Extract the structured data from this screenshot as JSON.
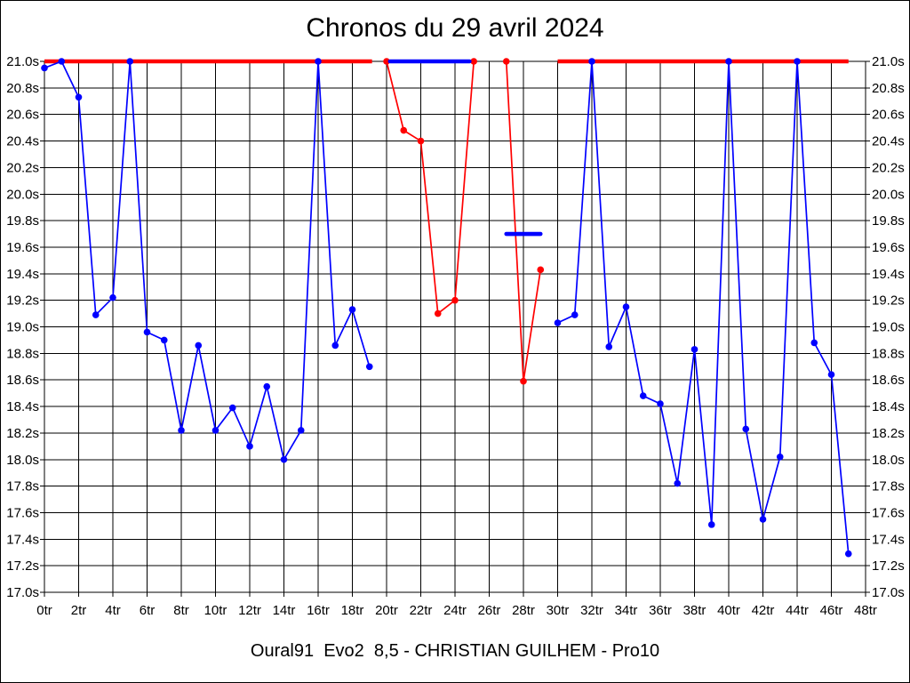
{
  "page": {
    "background": "#ffffff",
    "frame_border_color": "#000000"
  },
  "chart_data": {
    "type": "line",
    "title": "Chronos du 29 avril 2024",
    "caption": "Oural91  Evo2  8,5 - CHRISTIAN GUILHEM - Pro10",
    "grid": true,
    "clip_value_seconds": 21.0,
    "x_axis": {
      "unit": "tr",
      "min": 0,
      "max": 48,
      "tick_step": 2,
      "tick_labels": [
        "0tr",
        "2tr",
        "4tr",
        "6tr",
        "8tr",
        "10tr",
        "12tr",
        "14tr",
        "16tr",
        "18tr",
        "20tr",
        "22tr",
        "24tr",
        "26tr",
        "28tr",
        "30tr",
        "32tr",
        "34tr",
        "36tr",
        "38tr",
        "40tr",
        "42tr",
        "44tr",
        "46tr",
        "48tr"
      ]
    },
    "y_axis": {
      "unit": "s",
      "min": 17.0,
      "max": 21.0,
      "tick_step": 0.2,
      "tick_labels": [
        "21.0s",
        "20.8s",
        "20.6s",
        "20.4s",
        "20.2s",
        "20.0s",
        "19.8s",
        "19.6s",
        "19.4s",
        "19.2s",
        "19.0s",
        "18.8s",
        "18.6s",
        "18.4s",
        "18.2s",
        "18.0s",
        "17.8s",
        "17.6s",
        "17.4s",
        "17.2s",
        "17.0s"
      ],
      "labels_on_left": true,
      "labels_on_right": true
    },
    "series": [
      {
        "name": "red-series",
        "color": "#ff0000",
        "segments": [
          {
            "style": "thick",
            "cap": "butt",
            "points": [
              [
                0,
                21.0
              ],
              [
                19.15,
                21.0
              ]
            ]
          },
          {
            "style": "markers",
            "points": [
              [
                20,
                21.0
              ],
              [
                21,
                20.48
              ],
              [
                22,
                20.4
              ],
              [
                23,
                19.1
              ],
              [
                24,
                19.2
              ],
              [
                25.1,
                21.0
              ]
            ]
          },
          {
            "style": "markers",
            "points": [
              [
                27,
                21.0
              ],
              [
                28,
                18.59
              ],
              [
                29,
                19.43
              ]
            ]
          },
          {
            "style": "thick",
            "cap": "butt",
            "points": [
              [
                30,
                21.0
              ],
              [
                47,
                21.0
              ]
            ]
          }
        ]
      },
      {
        "name": "blue-series",
        "color": "#0000ff",
        "segments": [
          {
            "style": "markers",
            "points": [
              [
                0,
                20.95
              ],
              [
                1,
                21.0
              ],
              [
                2,
                20.73
              ],
              [
                3,
                19.09
              ],
              [
                4,
                19.22
              ],
              [
                5,
                21.0
              ],
              [
                6,
                18.96
              ],
              [
                7,
                18.9
              ],
              [
                8,
                18.22
              ],
              [
                9,
                18.86
              ],
              [
                10,
                18.22
              ],
              [
                11,
                18.39
              ],
              [
                12,
                18.1
              ],
              [
                13,
                18.55
              ],
              [
                14,
                18.0
              ],
              [
                15,
                18.22
              ],
              [
                16,
                21.0
              ],
              [
                17,
                18.86
              ],
              [
                18,
                19.13
              ],
              [
                19,
                18.7
              ]
            ]
          },
          {
            "style": "thick",
            "cap": "round",
            "points": [
              [
                20.2,
                21.0
              ],
              [
                24.85,
                21.0
              ]
            ]
          },
          {
            "style": "thick",
            "cap": "round",
            "points": [
              [
                27,
                19.7
              ],
              [
                29,
                19.7
              ]
            ]
          },
          {
            "style": "markers",
            "points": [
              [
                30,
                19.03
              ],
              [
                31,
                19.09
              ],
              [
                32,
                21.0
              ],
              [
                33,
                18.85
              ],
              [
                34,
                19.15
              ],
              [
                35,
                18.48
              ],
              [
                36,
                18.42
              ],
              [
                37,
                17.82
              ],
              [
                38,
                18.83
              ],
              [
                39,
                17.51
              ],
              [
                40,
                21.0
              ],
              [
                41,
                18.23
              ],
              [
                42,
                17.55
              ],
              [
                43,
                18.02
              ],
              [
                44,
                21.0
              ],
              [
                45,
                18.88
              ],
              [
                46,
                18.64
              ],
              [
                47,
                17.29
              ]
            ]
          }
        ]
      }
    ]
  }
}
